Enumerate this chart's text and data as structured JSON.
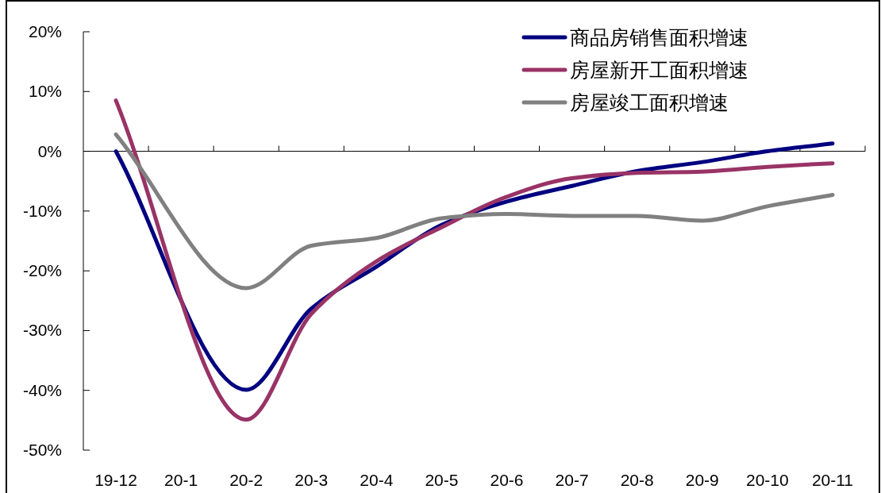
{
  "chart_data": {
    "type": "line",
    "categories": [
      "19-12",
      "20-1",
      "20-2",
      "20-3",
      "20-4",
      "20-5",
      "20-6",
      "20-7",
      "20-8",
      "20-9",
      "20-10",
      "20-11"
    ],
    "series": [
      {
        "name": "商品房销售面积增速",
        "color": "#000080",
        "values": [
          0,
          null,
          -39.9,
          -26.3,
          -19.3,
          -12.3,
          -8.4,
          -5.8,
          -3.3,
          -1.8,
          0,
          1.3
        ]
      },
      {
        "name": "房屋新开工面积增速",
        "color": "#993366",
        "values": [
          8.5,
          null,
          -44.9,
          -27.2,
          -18.4,
          -12.7,
          -7.6,
          -4.5,
          -3.6,
          -3.4,
          -2.6,
          -2.0
        ]
      },
      {
        "name": "房屋竣工面积增速",
        "color": "#808080",
        "values": [
          2.8,
          null,
          -22.9,
          -15.8,
          -14.5,
          -11.2,
          -10.5,
          -10.8,
          -10.8,
          -11.6,
          -9.2,
          -7.3
        ]
      }
    ],
    "ylim": [
      -50,
      20
    ],
    "yticks": [
      {
        "value": -50,
        "label": "-50%"
      },
      {
        "value": -40,
        "label": "-40%"
      },
      {
        "value": -30,
        "label": "-30%"
      },
      {
        "value": -20,
        "label": "-20%"
      },
      {
        "value": -10,
        "label": "-10%"
      },
      {
        "value": 0,
        "label": "0%"
      },
      {
        "value": 10,
        "label": "10%"
      },
      {
        "value": 20,
        "label": "20%"
      }
    ],
    "legend": "top right"
  }
}
